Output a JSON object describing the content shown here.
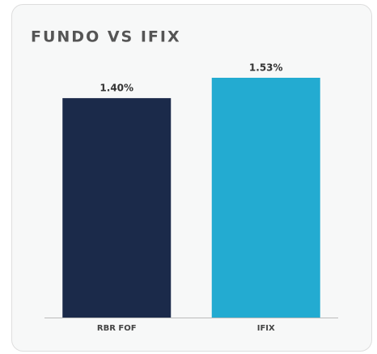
{
  "chart_data": {
    "type": "bar",
    "title": "FUNDO VS IFIX",
    "categories": [
      "RBR FOF",
      "IFIX"
    ],
    "values": [
      1.4,
      1.53
    ],
    "value_labels": [
      "1.40%",
      "1.53%"
    ],
    "colors": [
      "#1b2a4a",
      "#23abd1"
    ]
  }
}
